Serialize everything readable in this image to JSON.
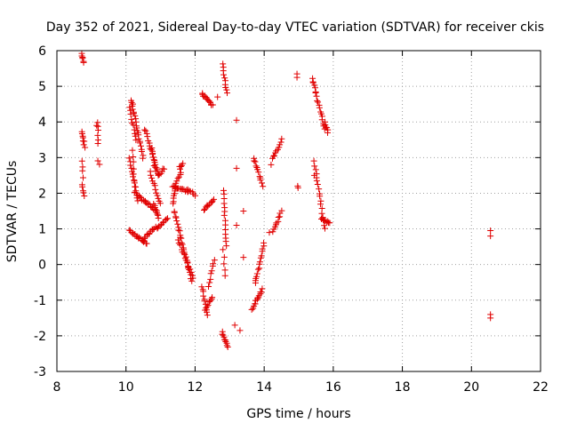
{
  "chart_data": {
    "type": "scatter",
    "title": "Day 352 of 2021, Sidereal Day-to-day VTEC variation (SDTVAR) for receiver ckis",
    "xlabel": "GPS time / hours",
    "ylabel": "SDTVAR / TECUs",
    "xlim": [
      8,
      22
    ],
    "ylim": [
      -3,
      6
    ],
    "xticks": [
      "8",
      "10",
      "12",
      "14",
      "16",
      "18",
      "20",
      "22"
    ],
    "yticks": [
      "-3",
      "-2",
      "-1",
      "0",
      "1",
      "2",
      "3",
      "4",
      "5",
      "6"
    ],
    "grid": true,
    "marker": "+",
    "color": "#e00000",
    "point_segments": [
      {
        "from": [
          8.72,
          5.92
        ],
        "to": [
          8.78,
          5.65
        ],
        "n": 6
      },
      {
        "from": [
          8.72,
          3.75
        ],
        "to": [
          8.8,
          3.3
        ],
        "n": 8
      },
      {
        "from": [
          8.73,
          2.9
        ],
        "to": [
          8.76,
          2.45
        ],
        "n": 4
      },
      {
        "from": [
          8.73,
          2.25
        ],
        "to": [
          8.8,
          1.9
        ],
        "n": 5
      },
      {
        "from": [
          9.18,
          4.0
        ],
        "to": [
          9.2,
          3.4
        ],
        "n": 6
      },
      {
        "from": [
          9.18,
          2.9
        ],
        "to": [
          9.22,
          2.82
        ],
        "n": 2
      },
      {
        "from": [
          10.15,
          4.6
        ],
        "to": [
          10.5,
          3.0
        ],
        "n": 22
      },
      {
        "from": [
          10.1,
          4.4
        ],
        "to": [
          10.3,
          3.5
        ],
        "n": 10
      },
      {
        "from": [
          10.1,
          3.0
        ],
        "to": [
          10.35,
          1.8
        ],
        "n": 14
      },
      {
        "from": [
          10.2,
          3.2
        ],
        "to": [
          10.25,
          2.0
        ],
        "n": 8
      },
      {
        "from": [
          10.3,
          1.95
        ],
        "to": [
          10.9,
          1.5
        ],
        "n": 20
      },
      {
        "from": [
          10.1,
          0.95
        ],
        "to": [
          10.6,
          0.6
        ],
        "n": 18
      },
      {
        "from": [
          10.5,
          0.7
        ],
        "to": [
          10.85,
          1.05
        ],
        "n": 12
      },
      {
        "from": [
          10.9,
          1.0
        ],
        "to": [
          11.2,
          1.3
        ],
        "n": 10
      },
      {
        "from": [
          10.55,
          3.8
        ],
        "to": [
          10.95,
          2.5
        ],
        "n": 18
      },
      {
        "from": [
          10.75,
          3.3
        ],
        "to": [
          10.85,
          2.6
        ],
        "n": 8
      },
      {
        "from": [
          10.95,
          2.5
        ],
        "to": [
          11.1,
          2.7
        ],
        "n": 6
      },
      {
        "from": [
          10.7,
          2.6
        ],
        "to": [
          11.0,
          1.7
        ],
        "n": 12
      },
      {
        "from": [
          10.8,
          1.7
        ],
        "to": [
          10.95,
          1.3
        ],
        "n": 8
      },
      {
        "from": [
          11.35,
          2.2
        ],
        "to": [
          11.8,
          2.05
        ],
        "n": 16
      },
      {
        "from": [
          11.35,
          1.7
        ],
        "to": [
          11.45,
          2.2
        ],
        "n": 8
      },
      {
        "from": [
          11.4,
          1.5
        ],
        "to": [
          11.9,
          -0.45
        ],
        "n": 28
      },
      {
        "from": [
          11.5,
          0.7
        ],
        "to": [
          11.95,
          -0.4
        ],
        "n": 14
      },
      {
        "from": [
          11.55,
          2.7
        ],
        "to": [
          11.65,
          2.85
        ],
        "n": 4
      },
      {
        "from": [
          11.45,
          2.3
        ],
        "to": [
          11.6,
          2.6
        ],
        "n": 6
      },
      {
        "from": [
          11.8,
          2.1
        ],
        "to": [
          12.0,
          1.95
        ],
        "n": 6
      },
      {
        "from": [
          12.2,
          4.8
        ],
        "to": [
          12.5,
          4.45
        ],
        "n": 14
      },
      {
        "from": [
          12.2,
          -0.6
        ],
        "to": [
          12.35,
          -1.4
        ],
        "n": 10
      },
      {
        "from": [
          12.3,
          -1.3
        ],
        "to": [
          12.5,
          -0.9
        ],
        "n": 8
      },
      {
        "from": [
          12.4,
          -0.6
        ],
        "to": [
          12.55,
          0.15
        ],
        "n": 8
      },
      {
        "from": [
          12.25,
          1.55
        ],
        "to": [
          12.55,
          1.8
        ],
        "n": 10
      },
      {
        "from": [
          12.8,
          5.6
        ],
        "to": [
          12.92,
          4.8
        ],
        "n": 10
      },
      {
        "from": [
          12.82,
          2.1
        ],
        "to": [
          12.9,
          0.5
        ],
        "n": 14
      },
      {
        "from": [
          12.82,
          0.4
        ],
        "to": [
          12.87,
          -0.3
        ],
        "n": 5
      },
      {
        "from": [
          12.78,
          -1.9
        ],
        "to": [
          12.95,
          -2.3
        ],
        "n": 10
      },
      {
        "from": [
          13.7,
          3.0
        ],
        "to": [
          13.95,
          2.2
        ],
        "n": 12
      },
      {
        "from": [
          13.75,
          -0.5
        ],
        "to": [
          14.0,
          0.6
        ],
        "n": 14
      },
      {
        "from": [
          13.65,
          -1.25
        ],
        "to": [
          13.95,
          -0.7
        ],
        "n": 14
      },
      {
        "from": [
          14.25,
          0.9
        ],
        "to": [
          14.5,
          1.5
        ],
        "n": 10
      },
      {
        "from": [
          14.25,
          2.95
        ],
        "to": [
          14.5,
          3.5
        ],
        "n": 10
      },
      {
        "from": [
          15.4,
          5.2
        ],
        "to": [
          15.75,
          3.8
        ],
        "n": 18
      },
      {
        "from": [
          15.75,
          4.0
        ],
        "to": [
          15.85,
          3.7
        ],
        "n": 6
      },
      {
        "from": [
          15.45,
          2.9
        ],
        "to": [
          15.75,
          1.0
        ],
        "n": 18
      },
      {
        "from": [
          15.65,
          1.3
        ],
        "to": [
          15.9,
          1.15
        ],
        "n": 8
      }
    ],
    "points": [
      [
        9.15,
        3.9
      ],
      [
        10.2,
        4.5
      ],
      [
        11.55,
        2.75
      ],
      [
        12.65,
        4.7
      ],
      [
        13.2,
        4.05
      ],
      [
        13.2,
        2.7
      ],
      [
        13.2,
        1.1
      ],
      [
        13.4,
        1.5
      ],
      [
        13.4,
        0.2
      ],
      [
        13.15,
        -1.7
      ],
      [
        13.3,
        -1.85
      ],
      [
        13.75,
        -0.45
      ],
      [
        14.2,
        2.8
      ],
      [
        14.15,
        0.9
      ],
      [
        14.95,
        5.35
      ],
      [
        14.95,
        5.25
      ],
      [
        14.97,
        2.2
      ],
      [
        14.98,
        2.15
      ],
      [
        15.45,
        2.5
      ],
      [
        15.42,
        5.1
      ],
      [
        20.55,
        0.95
      ],
      [
        20.55,
        0.8
      ],
      [
        20.55,
        -1.4
      ],
      [
        20.55,
        -1.5
      ]
    ]
  }
}
